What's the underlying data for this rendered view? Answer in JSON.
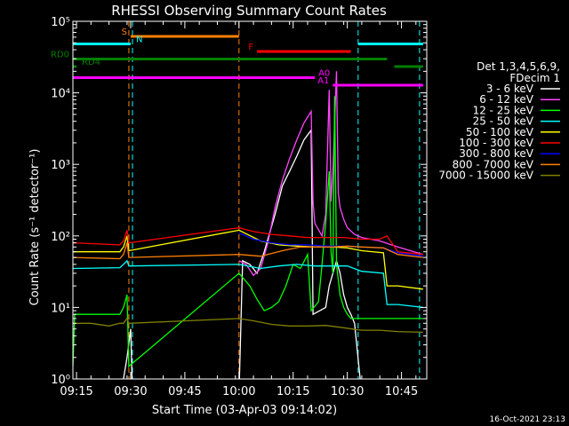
{
  "chart_data": {
    "type": "line",
    "title": "RHESSI Observing Summary Count Rates",
    "xlabel": "Start Time (03-Apr-03 09:14:02)",
    "ylabel": "Count Rate (s⁻¹ detector⁻¹)",
    "yscale": "log",
    "ylim": [
      1,
      100000
    ],
    "xlim_minutes": [
      0,
      98
    ],
    "x_ticks": [
      {
        "label": "09:15",
        "t": 1
      },
      {
        "label": "09:30",
        "t": 16
      },
      {
        "label": "09:45",
        "t": 31
      },
      {
        "label": "10:00",
        "t": 46
      },
      {
        "label": "10:15",
        "t": 61
      },
      {
        "label": "10:30",
        "t": 76
      },
      {
        "label": "10:45",
        "t": 91
      }
    ],
    "y_ticks": [
      {
        "label": "10⁰",
        "v": 1
      },
      {
        "label": "10¹",
        "v": 10
      },
      {
        "label": "10²",
        "v": 100
      },
      {
        "label": "10³",
        "v": 1000
      },
      {
        "label": "10⁴",
        "v": 10000
      },
      {
        "label": "10⁵",
        "v": 100000
      }
    ],
    "legend": {
      "header": [
        "Det 1,3,4,5,6,9,",
        "FDecim 1"
      ],
      "placement": "right"
    },
    "series": [
      {
        "name": "3 - 6 keV",
        "color": "#ffffff",
        "points": [
          [
            0,
            0.6
          ],
          [
            13,
            0.6
          ],
          [
            14,
            1.0
          ],
          [
            15,
            2.0
          ],
          [
            16,
            5
          ],
          [
            16.5,
            0.6
          ],
          [
            46,
            0.6
          ],
          [
            47,
            45
          ],
          [
            49,
            40
          ],
          [
            51,
            30
          ],
          [
            53,
            60
          ],
          [
            56,
            200
          ],
          [
            58,
            500
          ],
          [
            60,
            800
          ],
          [
            62,
            1300
          ],
          [
            64,
            2200
          ],
          [
            66,
            3000
          ],
          [
            66.5,
            8
          ],
          [
            70,
            10
          ],
          [
            71,
            20
          ],
          [
            72,
            30
          ],
          [
            73,
            45
          ],
          [
            74,
            30
          ],
          [
            75,
            15
          ],
          [
            76,
            10
          ],
          [
            77,
            8
          ],
          [
            78,
            6
          ],
          [
            80,
            0.6
          ]
        ]
      },
      {
        "name": "6 - 12 keV",
        "color": "#ff44ff",
        "points": [
          [
            46,
            45
          ],
          [
            48,
            40
          ],
          [
            50,
            28
          ],
          [
            52,
            35
          ],
          [
            54,
            80
          ],
          [
            56,
            250
          ],
          [
            58,
            600
          ],
          [
            60,
            1200
          ],
          [
            62,
            2200
          ],
          [
            64,
            3800
          ],
          [
            66,
            5500
          ],
          [
            66.5,
            300
          ],
          [
            67,
            150
          ],
          [
            69,
            100
          ],
          [
            70,
            200
          ],
          [
            71,
            11000
          ],
          [
            71.5,
            300
          ],
          [
            72,
            800
          ],
          [
            73,
            20000
          ],
          [
            73.5,
            400
          ],
          [
            74,
            250
          ],
          [
            75,
            170
          ],
          [
            76,
            130
          ],
          [
            78,
            105
          ],
          [
            80,
            95
          ],
          [
            85,
            85
          ],
          [
            90,
            70
          ],
          [
            97,
            55
          ]
        ]
      },
      {
        "name": "12 - 25 keV",
        "color": "#00ff00",
        "points": [
          [
            0,
            1.5
          ],
          [
            0.5,
            8
          ],
          [
            13,
            8
          ],
          [
            14,
            10
          ],
          [
            15,
            15
          ],
          [
            15.5,
            1.5
          ],
          [
            46,
            30
          ],
          [
            49,
            20
          ],
          [
            51,
            13
          ],
          [
            53,
            9
          ],
          [
            55,
            10
          ],
          [
            57,
            12
          ],
          [
            59,
            20
          ],
          [
            61,
            40
          ],
          [
            63,
            35
          ],
          [
            65,
            55
          ],
          [
            66,
            9
          ],
          [
            68,
            12
          ],
          [
            69,
            40
          ],
          [
            70,
            150
          ],
          [
            71,
            800
          ],
          [
            71.5,
            60
          ],
          [
            72,
            30
          ],
          [
            72.5,
            9000
          ],
          [
            73,
            40
          ],
          [
            74,
            15
          ],
          [
            75,
            10
          ],
          [
            76,
            8
          ],
          [
            77,
            7
          ],
          [
            80,
            7
          ],
          [
            90,
            7
          ],
          [
            97,
            7
          ]
        ]
      },
      {
        "name": "25 - 50 keV",
        "color": "#00ffff",
        "points": [
          [
            0,
            35
          ],
          [
            13,
            36
          ],
          [
            14,
            40
          ],
          [
            15,
            45
          ],
          [
            15.5,
            38
          ],
          [
            46,
            40
          ],
          [
            52,
            35
          ],
          [
            57,
            38
          ],
          [
            62,
            40
          ],
          [
            67,
            38
          ],
          [
            72,
            38
          ],
          [
            76,
            38
          ],
          [
            80,
            32
          ],
          [
            86,
            30
          ],
          [
            87,
            11
          ],
          [
            90,
            11
          ],
          [
            97,
            10
          ]
        ]
      },
      {
        "name": "50 - 100 keV",
        "color": "#ffff00",
        "points": [
          [
            0,
            60
          ],
          [
            13,
            60
          ],
          [
            14,
            70
          ],
          [
            15,
            100
          ],
          [
            15.5,
            62
          ],
          [
            46,
            120
          ],
          [
            52,
            85
          ],
          [
            57,
            75
          ],
          [
            62,
            72
          ],
          [
            67,
            70
          ],
          [
            72,
            70
          ],
          [
            76,
            68
          ],
          [
            80,
            62
          ],
          [
            86,
            58
          ],
          [
            87,
            20
          ],
          [
            90,
            20
          ],
          [
            97,
            18
          ]
        ]
      },
      {
        "name": "100 - 300 keV",
        "color": "#ff0000",
        "points": [
          [
            0,
            80
          ],
          [
            13,
            75
          ],
          [
            14,
            85
          ],
          [
            15,
            120
          ],
          [
            15.5,
            80
          ],
          [
            46,
            130
          ],
          [
            50,
            115
          ],
          [
            55,
            105
          ],
          [
            60,
            100
          ],
          [
            65,
            95
          ],
          [
            70,
            95
          ],
          [
            75,
            95
          ],
          [
            80,
            90
          ],
          [
            85,
            90
          ],
          [
            87,
            100
          ],
          [
            90,
            60
          ],
          [
            97,
            55
          ]
        ]
      },
      {
        "name": "300 - 800 keV",
        "color": "#0000ff",
        "points": [
          [
            46,
            110
          ],
          [
            50,
            90
          ],
          [
            55,
            80
          ],
          [
            60,
            75
          ],
          [
            65,
            75
          ],
          [
            70,
            72
          ],
          [
            75,
            72
          ],
          [
            80,
            70
          ],
          [
            86,
            68
          ],
          [
            90,
            58
          ],
          [
            97,
            52
          ]
        ]
      },
      {
        "name": "800 - 7000 keV",
        "color": "#ff8000",
        "points": [
          [
            0,
            50
          ],
          [
            13,
            48
          ],
          [
            14,
            55
          ],
          [
            15,
            80
          ],
          [
            15.5,
            50
          ],
          [
            46,
            55
          ],
          [
            52,
            52
          ],
          [
            58,
            62
          ],
          [
            63,
            70
          ],
          [
            68,
            70
          ],
          [
            72,
            70
          ],
          [
            76,
            72
          ],
          [
            80,
            70
          ],
          [
            86,
            68
          ],
          [
            90,
            55
          ],
          [
            97,
            50
          ]
        ]
      },
      {
        "name": "7000 - 15000 keV",
        "color": "#808000",
        "points": [
          [
            0,
            6
          ],
          [
            5,
            6
          ],
          [
            10,
            5.5
          ],
          [
            13,
            6
          ],
          [
            14,
            6
          ],
          [
            15,
            7
          ],
          [
            15.5,
            6
          ],
          [
            46,
            7
          ],
          [
            50,
            6.5
          ],
          [
            55,
            5.8
          ],
          [
            60,
            5.5
          ],
          [
            65,
            5.5
          ],
          [
            70,
            5.6
          ],
          [
            75,
            5.2
          ],
          [
            80,
            4.8
          ],
          [
            85,
            4.8
          ],
          [
            90,
            4.6
          ],
          [
            97,
            4.5
          ]
        ]
      }
    ],
    "flags": [
      {
        "label": "S",
        "color": "#ff8000",
        "t0": 16,
        "t1": 46,
        "level": 1
      },
      {
        "label": "N",
        "color": "#00ffff",
        "t0": 0,
        "t1": 16,
        "level": 2
      },
      {
        "label": "",
        "color": "#00ffff",
        "t0": 79,
        "t1": 97,
        "level": 2
      },
      {
        "label": "F",
        "color": "#ff0000",
        "t0": 51,
        "t1": 77,
        "level": 3
      },
      {
        "label": "RD0",
        "color": "#008000",
        "t0": 0,
        "t1": 87,
        "level": 4
      },
      {
        "label": "",
        "color": "#008000",
        "t0": 89,
        "t1": 97,
        "level": 5
      },
      {
        "label": "RD4",
        "color": "#008000",
        "t0": 0,
        "t1": 1,
        "level": 5
      },
      {
        "label": "A0",
        "color": "#ff00ff",
        "t0": 0,
        "t1": 67,
        "level": 6
      },
      {
        "label": "A1",
        "color": "#ff00ff",
        "t0": 72,
        "t1": 97,
        "level": 7
      }
    ],
    "vlines": [
      {
        "t": 15.5,
        "color": "#ff8000"
      },
      {
        "t": 16.5,
        "color": "#00ffff"
      },
      {
        "t": 46,
        "color": "#ff8000"
      },
      {
        "t": 79,
        "color": "#00ffff"
      },
      {
        "t": 96,
        "color": "#00ffff"
      }
    ],
    "timestamp": "16-Oct-2021 23:13"
  }
}
